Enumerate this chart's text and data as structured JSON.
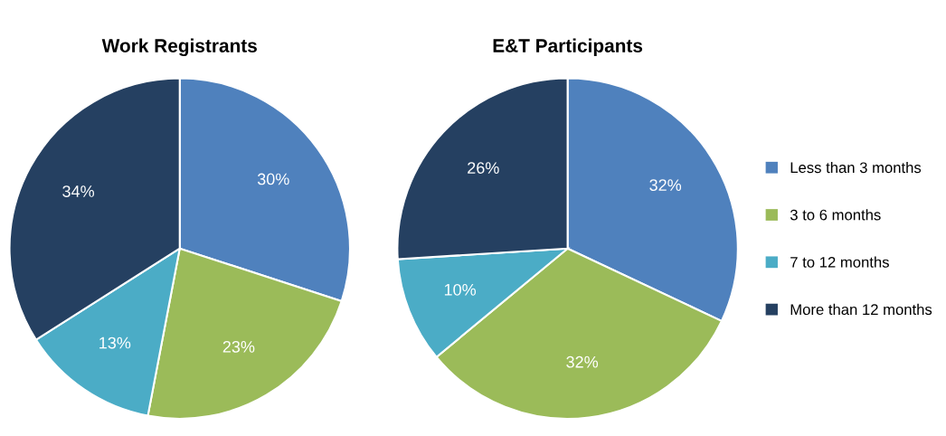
{
  "chart_data": [
    {
      "type": "pie",
      "title": "Work Registrants",
      "categories": [
        "Less than 3 months",
        "3 to 6 months",
        "7 to 12 months",
        "More than 12 months"
      ],
      "values": [
        30,
        23,
        13,
        34
      ],
      "value_labels": [
        "30%",
        "23%",
        "13%",
        "34%"
      ],
      "colors": [
        "#4f81bd",
        "#9bbb59",
        "#4bacc6",
        "#254061"
      ],
      "legend": "right"
    },
    {
      "type": "pie",
      "title": "E&T Participants",
      "categories": [
        null,
        null,
        null,
        null
      ],
      "values": [
        32,
        32,
        10,
        26
      ],
      "value_labels": [
        "32%",
        "32%",
        "10%",
        "26%"
      ],
      "colors": [
        "#4f81bd",
        "#9bbb59",
        "#4bacc6",
        "#254061"
      ]
    }
  ]
}
